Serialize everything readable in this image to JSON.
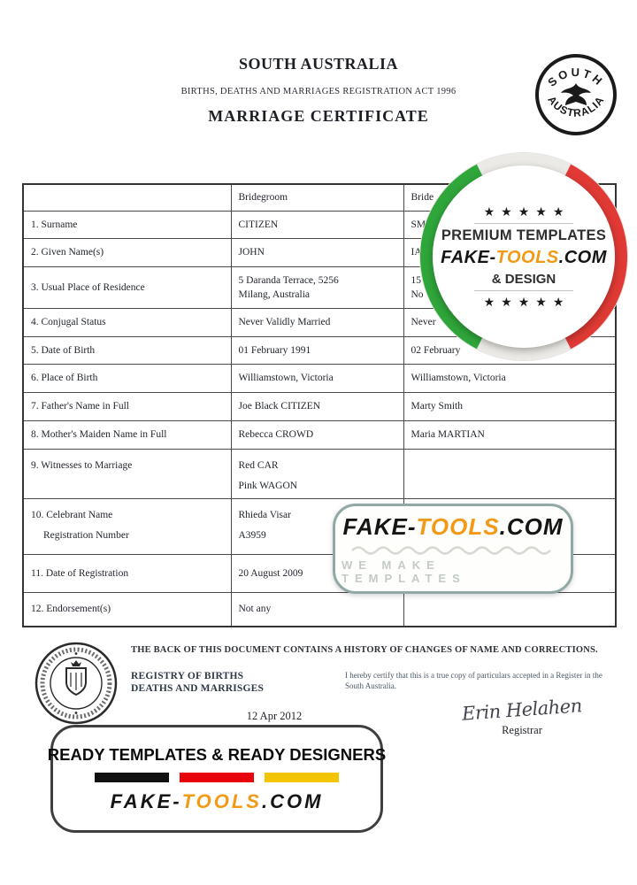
{
  "document": {
    "region_title": "SOUTH AUSTRALIA",
    "act_line": "BIRTHS, DEATHS AND MARRIAGES REGISTRATION ACT 1996",
    "title": "MARRIAGE CERTIFICATE"
  },
  "state_seal": {
    "top_text": "SOUTH",
    "bottom_text": "AUSTRALIA"
  },
  "table": {
    "columns": [
      "",
      "Bridegroom",
      "Bride"
    ],
    "rows": [
      {
        "label": [
          "1. Surname"
        ],
        "bridegroom": [
          "CITIZEN"
        ],
        "bride": [
          "SM"
        ]
      },
      {
        "label": [
          "2. Given Name(s)"
        ],
        "bridegroom": [
          "JOHN"
        ],
        "bride": [
          "IA"
        ]
      },
      {
        "label": [
          "3. Usual Place of Residence"
        ],
        "bridegroom": [
          "5 Daranda Terrace, 5256",
          "Milang, Australia"
        ],
        "bride": [
          "15",
          "No"
        ]
      },
      {
        "label": [
          "4. Conjugal Status"
        ],
        "bridegroom": [
          "Never Validly Married"
        ],
        "bride": [
          "Never"
        ]
      },
      {
        "label": [
          "5. Date of Birth"
        ],
        "bridegroom": [
          "01 February 1991"
        ],
        "bride": [
          "02 February"
        ]
      },
      {
        "label": [
          "6. Place of Birth"
        ],
        "bridegroom": [
          "Williamstown, Victoria"
        ],
        "bride": [
          "Williamstown, Victoria"
        ]
      },
      {
        "label": [
          "7. Father's Name in Full"
        ],
        "bridegroom": [
          "Joe Black CITIZEN"
        ],
        "bride": [
          "Marty Smith"
        ]
      },
      {
        "label": [
          "8. Mother's Maiden Name in Full"
        ],
        "bridegroom": [
          "Rebecca CROWD"
        ],
        "bride": [
          "Maria MARTIAN"
        ]
      },
      {
        "label": [
          "9. Witnesses to Marriage"
        ],
        "bridegroom": [
          "Red CAR",
          "Pink WAGON"
        ],
        "bride": [
          ""
        ]
      },
      {
        "label": [
          "10. Celebrant Name",
          "Registration Number"
        ],
        "bridegroom": [
          "Rhieda Visar",
          "A3959"
        ],
        "bride": [
          ""
        ]
      },
      {
        "label": [
          "11. Date of Registration"
        ],
        "bridegroom": [
          "20 August 2009"
        ],
        "bride": [
          ""
        ]
      },
      {
        "label": [
          "12. Endorsement(s)"
        ],
        "bridegroom": [
          "Not any"
        ],
        "bride": [
          ""
        ]
      }
    ]
  },
  "premium_badge": {
    "stars_top": "★★★★★",
    "stars_bottom": "★★★★★",
    "line1": "PREMIUM TEMPLATES",
    "brand": {
      "fake": "FAKE-",
      "tools": "TOOLS",
      "com": ".COM"
    },
    "line2": "& DESIGN",
    "colors": {
      "ring_green": "#2fa63a",
      "ring_red": "#e13a35",
      "brand_orange": "#f29a16"
    }
  },
  "center_badge": {
    "brand": {
      "fake": "FAKE-",
      "tools": "TOOLS",
      "com": ".COM"
    },
    "tagline": "WE MAKE TEMPLATES"
  },
  "footer_banner": {
    "title": "READY TEMPLATES & READY DESIGNERS",
    "brand": {
      "fake": "FAKE-",
      "tools": "TOOLS",
      "com": ".COM"
    },
    "bar_colors": [
      "#101010",
      "#e8040c",
      "#f3c402"
    ]
  },
  "footer": {
    "back_notice": "THE BACK OF THIS DOCUMENT CONTAINS A HISTORY OF CHANGES OF NAME AND CORRECTIONS.",
    "registry_line1": "REGISTRY OF BIRTHS",
    "registry_line2": "DEATHS AND MARRISGES",
    "certify_text": "I hereby certify that this is a true copy of particulars accepted in a Register in the South Australia.",
    "date": "12 Apr 2012",
    "signature": "Erin Helahen",
    "registrar_label": "Registrar"
  }
}
